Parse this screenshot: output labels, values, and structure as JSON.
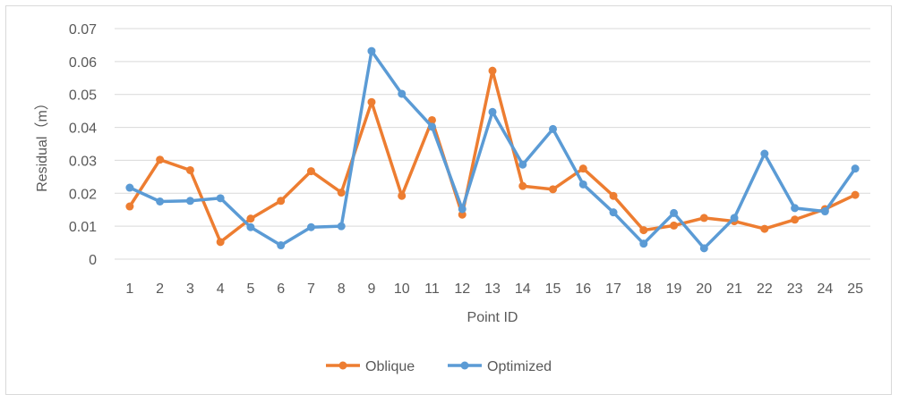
{
  "chart_data": {
    "type": "line",
    "title": "",
    "xlabel": "Point ID",
    "ylabel": "Residual（m）",
    "ylim": [
      0,
      0.07
    ],
    "yticks": [
      "0",
      "0.01",
      "0.02",
      "0.03",
      "0.04",
      "0.05",
      "0.06",
      "0.07"
    ],
    "categories": [
      "1",
      "2",
      "3",
      "4",
      "5",
      "6",
      "7",
      "8",
      "9",
      "10",
      "11",
      "12",
      "13",
      "14",
      "15",
      "16",
      "17",
      "18",
      "19",
      "20",
      "21",
      "22",
      "23",
      "24",
      "25"
    ],
    "grid": true,
    "legend": "bottom",
    "series": [
      {
        "name": "Oblique",
        "color": "#ed7d31",
        "values": [
          0.016,
          0.0302,
          0.027,
          0.0052,
          0.0123,
          0.0177,
          0.0267,
          0.0202,
          0.0477,
          0.0192,
          0.0422,
          0.0135,
          0.0572,
          0.0222,
          0.0212,
          0.0275,
          0.0192,
          0.0088,
          0.0102,
          0.0125,
          0.0115,
          0.0092,
          0.012,
          0.0152,
          0.0195
        ]
      },
      {
        "name": "Optimized",
        "color": "#5b9bd5",
        "values": [
          0.0217,
          0.0175,
          0.0177,
          0.0185,
          0.0097,
          0.0042,
          0.0097,
          0.01,
          0.0632,
          0.0502,
          0.0402,
          0.0152,
          0.0447,
          0.0287,
          0.0395,
          0.0227,
          0.0142,
          0.0047,
          0.014,
          0.0033,
          0.0125,
          0.032,
          0.0155,
          0.0145,
          0.0275
        ]
      }
    ]
  }
}
